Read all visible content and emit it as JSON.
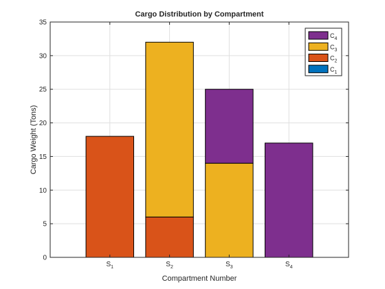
{
  "chart_data": {
    "type": "bar",
    "stacked": true,
    "title": "Cargo Distribution by Compartment",
    "xlabel": "Compartment Number",
    "ylabel": "Cargo Weight (Tons)",
    "categories": [
      {
        "base": "S",
        "sub": "1"
      },
      {
        "base": "S",
        "sub": "2"
      },
      {
        "base": "S",
        "sub": "3"
      },
      {
        "base": "S",
        "sub": "4"
      }
    ],
    "xlim": [
      0,
      5
    ],
    "ylim": [
      0,
      35
    ],
    "yticks": [
      0,
      5,
      10,
      15,
      20,
      25,
      30,
      35
    ],
    "grid": true,
    "legend_location": "top-right",
    "legend_order": [
      3,
      2,
      1,
      0
    ],
    "series": [
      {
        "name": {
          "base": "C",
          "sub": "1"
        },
        "color": "#0072BD",
        "values": [
          0,
          0,
          0,
          0
        ]
      },
      {
        "name": {
          "base": "C",
          "sub": "2"
        },
        "color": "#D95319",
        "values": [
          18,
          6,
          0,
          0
        ]
      },
      {
        "name": {
          "base": "C",
          "sub": "3"
        },
        "color": "#EDB120",
        "values": [
          0,
          26,
          14,
          0
        ]
      },
      {
        "name": {
          "base": "C",
          "sub": "4"
        },
        "color": "#7E2F8E",
        "values": [
          0,
          0,
          11,
          17
        ]
      }
    ]
  }
}
